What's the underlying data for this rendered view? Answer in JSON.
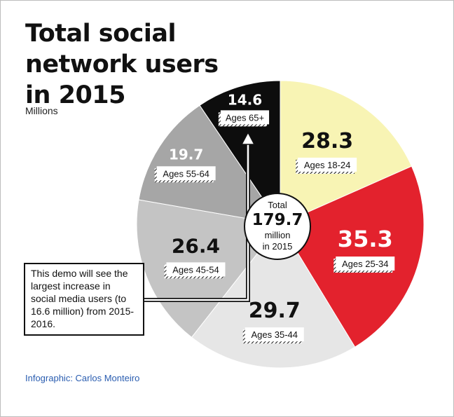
{
  "title_lines": [
    "Total social",
    "network users",
    "in 2015"
  ],
  "subtitle": "Millions",
  "credit": "Infographic: Carlos Monteiro",
  "center": {
    "line1": "Total",
    "value": "179.7",
    "line2": "million",
    "line3": "in 2015"
  },
  "callout_text": "This demo will see the largest increase in social media users (to 16.6 million) from 2015-2016.",
  "colors": {
    "ages_18_24": "#f8f4b4",
    "ages_25_34": "#e3222d",
    "ages_35_44": "#e6e6e6",
    "ages_45_54": "#c4c4c4",
    "ages_55_64": "#a6a6a6",
    "ages_65_plus": "#0d0d0d"
  },
  "chart_data": {
    "type": "pie",
    "title": "Total social network users in 2015",
    "subtitle": "Millions",
    "total": 179.7,
    "slices": [
      {
        "label": "Ages 18-24",
        "value": 28.3
      },
      {
        "label": "Ages 25-34",
        "value": 35.3
      },
      {
        "label": "Ages 35-44",
        "value": 29.7
      },
      {
        "label": "Ages 45-54",
        "value": 26.4
      },
      {
        "label": "Ages 55-64",
        "value": 19.7
      },
      {
        "label": "Ages 65+",
        "value": 14.6
      }
    ],
    "annotation": "This demo will see the largest increase in social media users (to 16.6 million) from 2015-2016."
  }
}
